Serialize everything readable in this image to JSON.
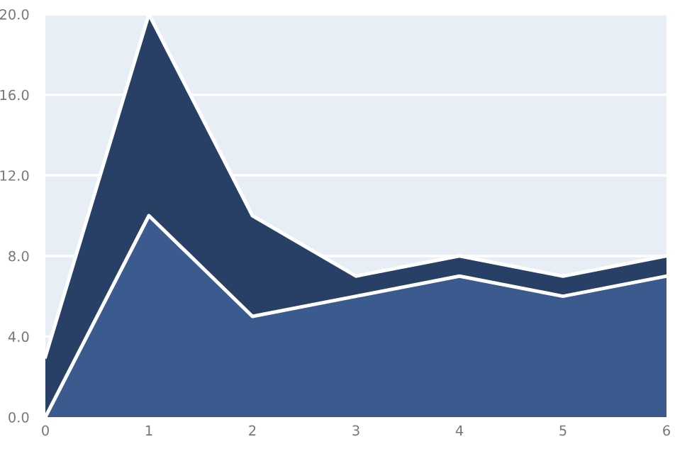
{
  "chart_data": {
    "type": "area",
    "stacked": true,
    "x": [
      0,
      1,
      2,
      3,
      4,
      5,
      6
    ],
    "series": [
      {
        "color": "#3b5b8f",
        "values": [
          0,
          10,
          5,
          6,
          7,
          6,
          7
        ]
      },
      {
        "color": "#283f66",
        "values": [
          3,
          10,
          5,
          1,
          1,
          1,
          1
        ]
      }
    ],
    "xlim": [
      0,
      6
    ],
    "xticks": [
      0,
      1,
      2,
      3,
      4,
      5,
      6
    ],
    "ylim": [
      0,
      20
    ],
    "yticks": [
      {
        "value": 0,
        "label": "0.0"
      },
      {
        "value": 4,
        "label": "4.0"
      },
      {
        "value": 8,
        "label": "8.0"
      },
      {
        "value": 12,
        "label": "12.0"
      },
      {
        "value": 16,
        "label": "16.0"
      },
      {
        "value": 20,
        "label": "20.0"
      }
    ],
    "grid": "y",
    "legend": false
  }
}
